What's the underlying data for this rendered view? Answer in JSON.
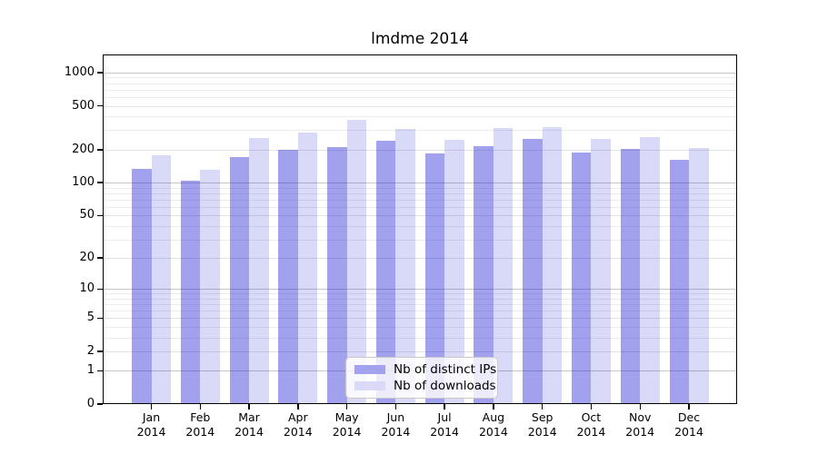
{
  "title": "lmdme 2014",
  "chart_data": {
    "type": "bar",
    "title": "lmdme 2014",
    "categories": [
      "Jan 2014",
      "Feb 2014",
      "Mar 2014",
      "Apr 2014",
      "May 2014",
      "Jun 2014",
      "Jul 2014",
      "Aug 2014",
      "Sep 2014",
      "Oct 2014",
      "Nov 2014",
      "Dec 2014"
    ],
    "series": [
      {
        "key": "distinct-ips",
        "name": "Nb of distinct IPs",
        "values": [
          134,
          105,
          170,
          199,
          210,
          240,
          186,
          215,
          250,
          188,
          202,
          163
        ],
        "fill": "rgba(32,32,214,0.42)",
        "legend_color": "#a2a2ee"
      },
      {
        "key": "downloads",
        "name": "Nb of downloads",
        "values": [
          177,
          130,
          257,
          288,
          375,
          309,
          246,
          316,
          322,
          248,
          262,
          205
        ],
        "fill": "rgba(32,32,214,0.17)",
        "legend_color": "#dadaf8"
      }
    ],
    "y_axis": {
      "scale": "log1p",
      "ticks": [
        0,
        1,
        2,
        5,
        10,
        20,
        50,
        100,
        200,
        500,
        1000
      ],
      "max": 1000
    },
    "x_axis": {
      "year_line": "2014"
    },
    "legend_position": "lower center",
    "grid": true
  },
  "colors": {
    "bar_dark": "#a2a2ee",
    "bar_light": "#dadaf8",
    "major_grid": "#c6c6c6",
    "mid_grid": "#e2e2e2",
    "minor_grid": "#ececec",
    "spine": "#000000",
    "legend_border": "#c9c9c9",
    "legend_bg": "rgba(255,255,255,0.8)"
  }
}
